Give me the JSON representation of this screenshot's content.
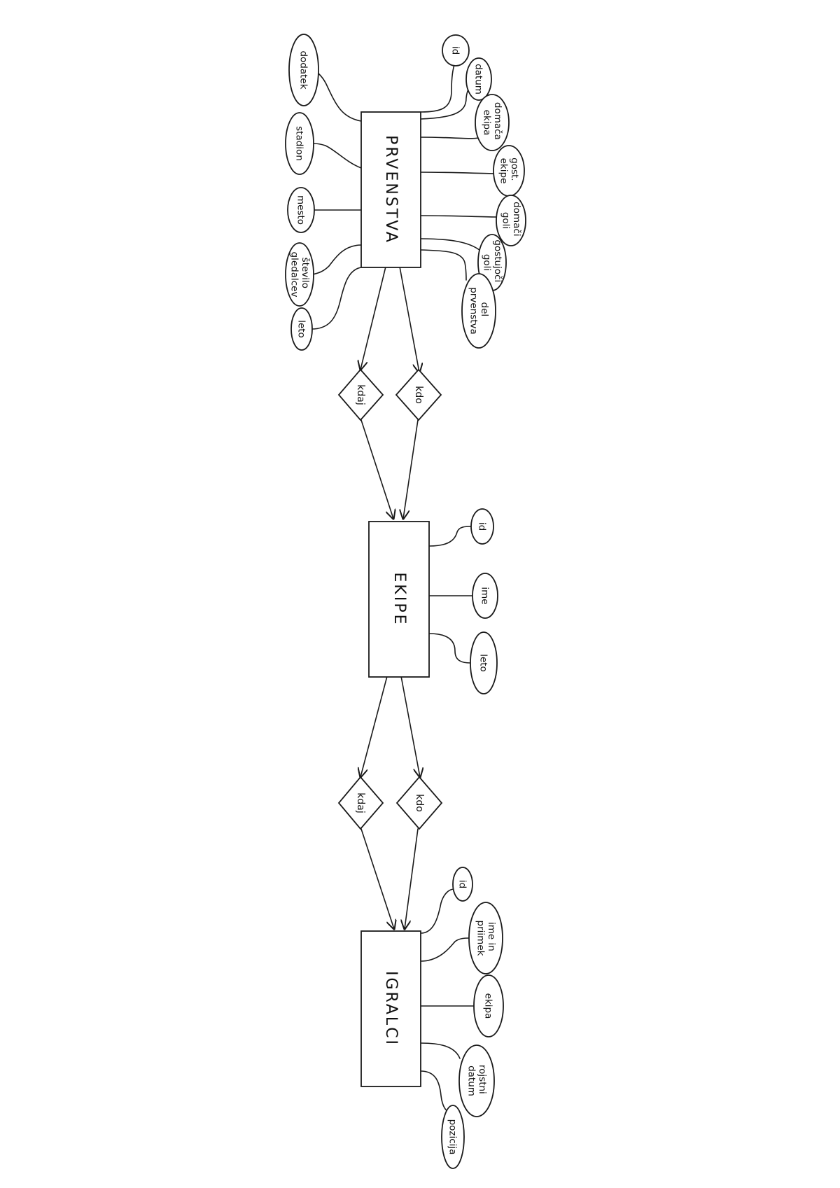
{
  "entities": {
    "prvenstva": "PRVENSTVA",
    "ekipe": "EKIPE",
    "igralci": "IGRALCI"
  },
  "relationships": {
    "prvenstva_ekipe": {
      "kdaj": "kdaj",
      "kdo": "kdo"
    },
    "ekipe_igralci": {
      "kdaj": "kdaj",
      "kdo": "kdo"
    }
  },
  "attributes": {
    "prvenstva": {
      "left": [
        [
          "dodatek"
        ],
        [
          "stadion"
        ],
        [
          "mesto"
        ],
        [
          "število",
          "gledalcev"
        ],
        [
          "leto"
        ]
      ],
      "right": [
        [
          "id"
        ],
        [
          "datum"
        ],
        [
          "domača",
          "ekipa"
        ],
        [
          "gost.",
          "ekipe"
        ],
        [
          "domači",
          "goli"
        ],
        [
          "gostujoči",
          "goli"
        ],
        [
          "del",
          "prvenstva"
        ]
      ]
    },
    "ekipe": {
      "right": [
        [
          "id"
        ],
        [
          "ime"
        ],
        [
          "leto"
        ]
      ]
    },
    "igralci": {
      "right": [
        [
          "id"
        ],
        [
          "ime in",
          "priimek"
        ],
        [
          "ekipa"
        ],
        [
          "rojstni",
          "datum"
        ],
        [
          "pozicija"
        ]
      ]
    }
  }
}
